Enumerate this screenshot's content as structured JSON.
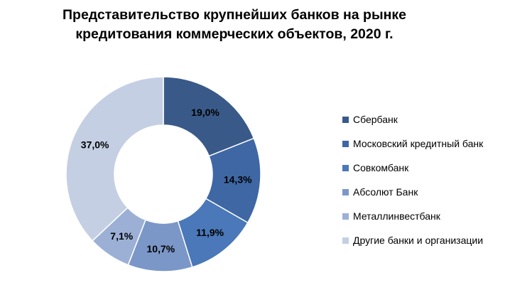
{
  "chart_data": {
    "type": "pie",
    "donut": true,
    "title_lines": [
      "Представительство крупнейших банков на рынке",
      "кредитования коммерческих объектов, 2020 г."
    ],
    "categories": [
      "Сбербанк",
      "Московский кредитный банк",
      "Совкомбанк",
      "Абсолют Банк",
      "Металлинвестбанк",
      "Другие банки и организации"
    ],
    "values": [
      19.0,
      14.3,
      11.9,
      10.7,
      7.1,
      37.0
    ],
    "value_labels": [
      "19,0%",
      "14,3%",
      "11,9%",
      "10,7%",
      "7,1%",
      "37,0%"
    ],
    "colors": [
      "#395a89",
      "#3e67a4",
      "#4a78b8",
      "#7b97c8",
      "#9cb0d6",
      "#c4cfe3"
    ],
    "legend_position": "right"
  }
}
